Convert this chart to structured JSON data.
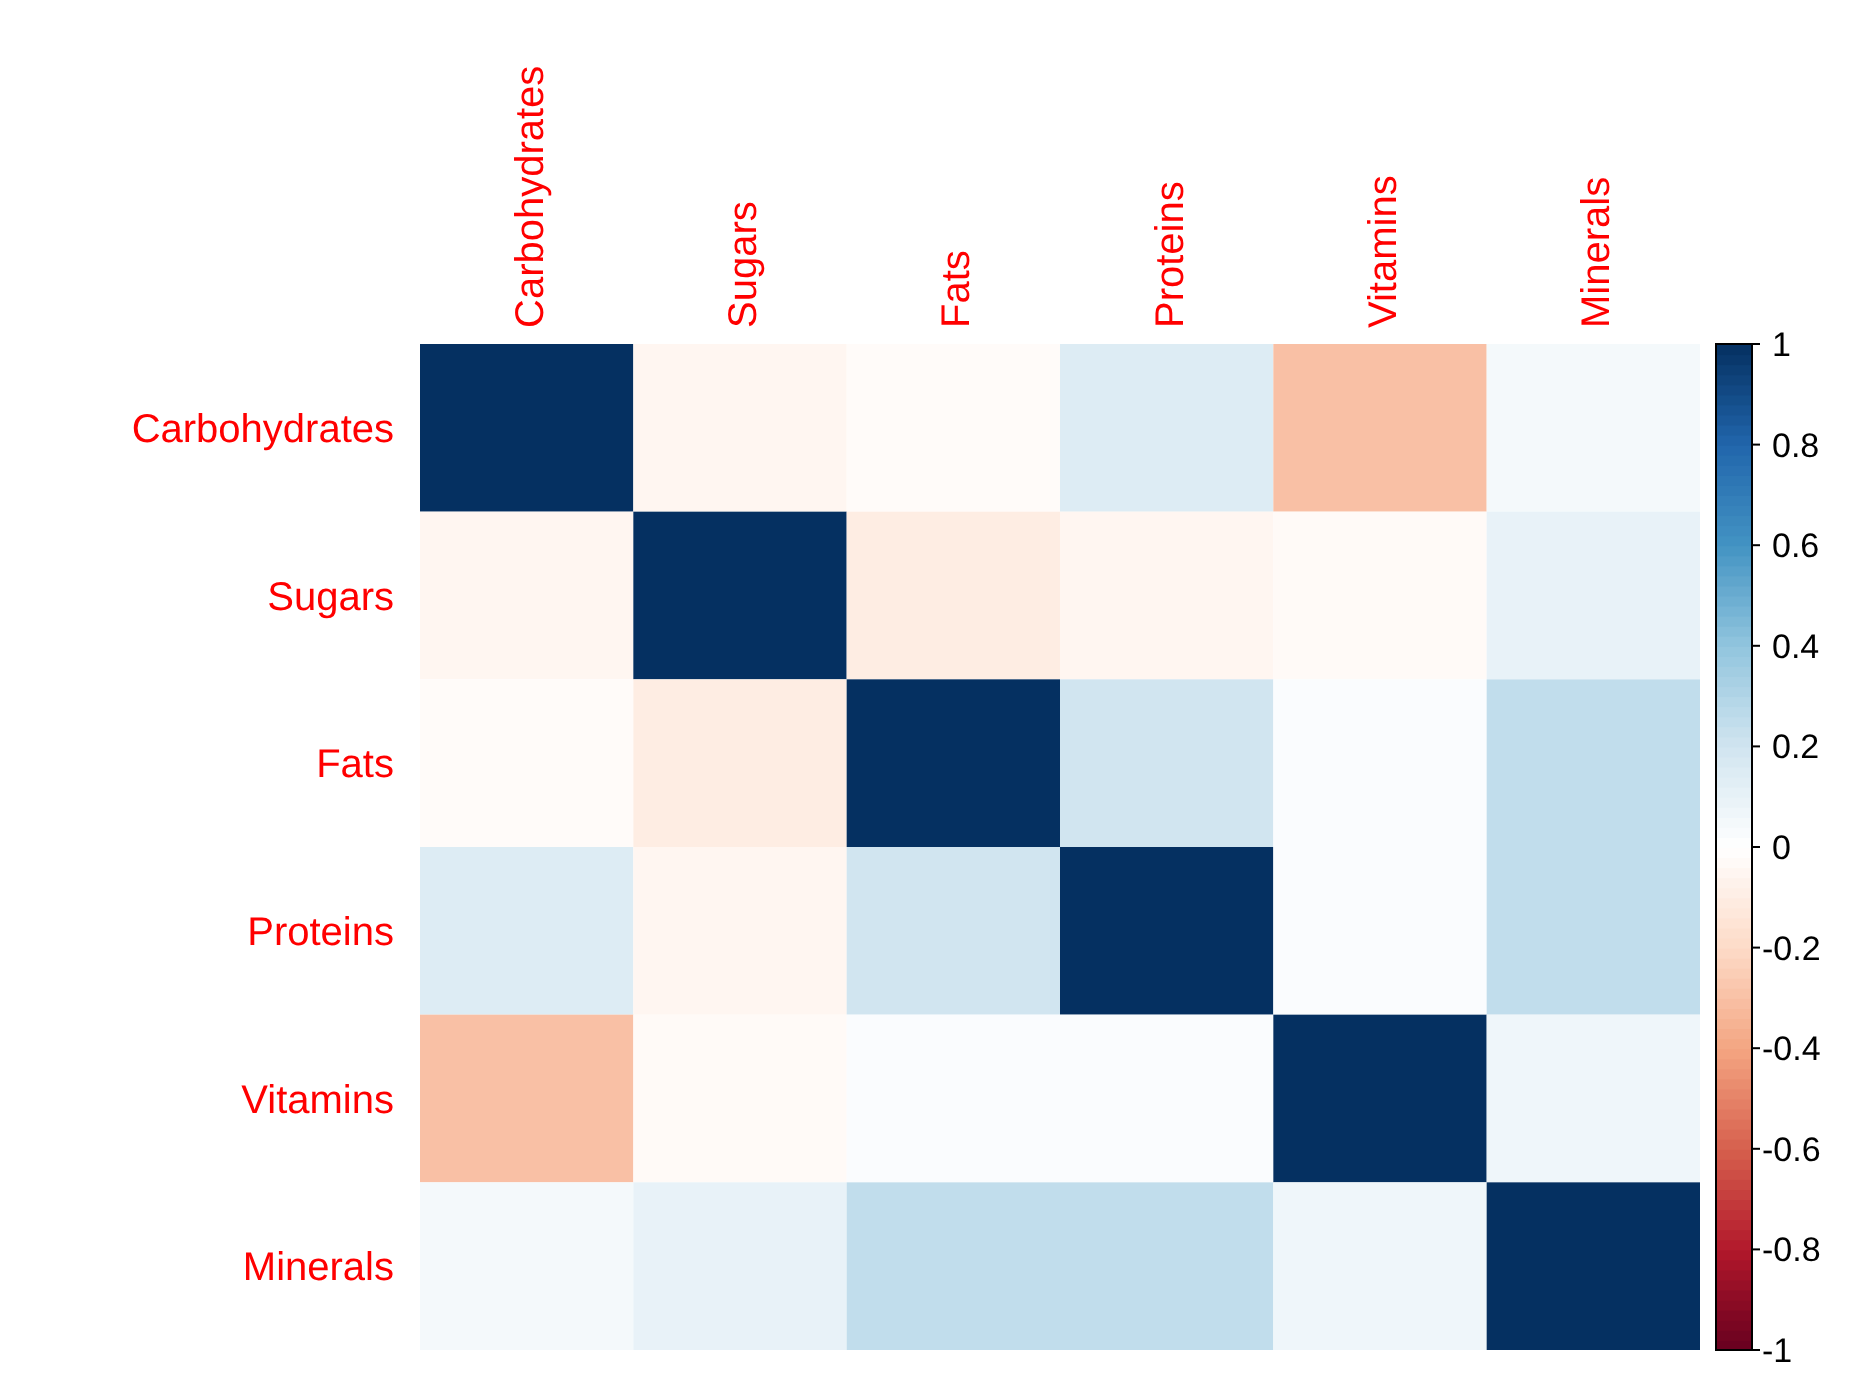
{
  "chart_data": {
    "type": "heatmap",
    "categories": [
      "Carbohydrates",
      "Sugars",
      "Fats",
      "Proteins",
      "Vitamins",
      "Minerals"
    ],
    "y_categories": [
      "Carbohydrates",
      "Sugars",
      "Fats",
      "Proteins",
      "Vitamins",
      "Minerals"
    ],
    "cells": [
      [
        1,
        -0.05,
        -0.02,
        0.15,
        -0.3,
        0.05
      ],
      [
        -0.05,
        1,
        -0.1,
        -0.05,
        -0.03,
        0.1
      ],
      [
        -0.02,
        -0.1,
        1,
        0.2,
        0.02,
        0.25
      ],
      [
        0.15,
        -0.05,
        0.2,
        1,
        0.02,
        0.25
      ],
      [
        -0.3,
        -0.03,
        0.02,
        0.02,
        1,
        0.07
      ],
      [
        0.05,
        0.1,
        0.25,
        0.25,
        0.07,
        1
      ]
    ],
    "clim": [
      -1,
      1
    ],
    "cticks": [
      {
        "value": -1,
        "label": "-1"
      },
      {
        "value": -0.8,
        "label": "-0.8"
      },
      {
        "value": -0.6,
        "label": "-0.6"
      },
      {
        "value": -0.4,
        "label": "-0.4"
      },
      {
        "value": -0.2,
        "label": "-0.2"
      },
      {
        "value": 0,
        "label": "0"
      },
      {
        "value": 0.2,
        "label": "0.2"
      },
      {
        "value": 0.4,
        "label": "0.4"
      },
      {
        "value": 0.6,
        "label": "0.6"
      },
      {
        "value": 0.8,
        "label": "0.8"
      },
      {
        "value": 1,
        "label": "1"
      }
    ]
  }
}
